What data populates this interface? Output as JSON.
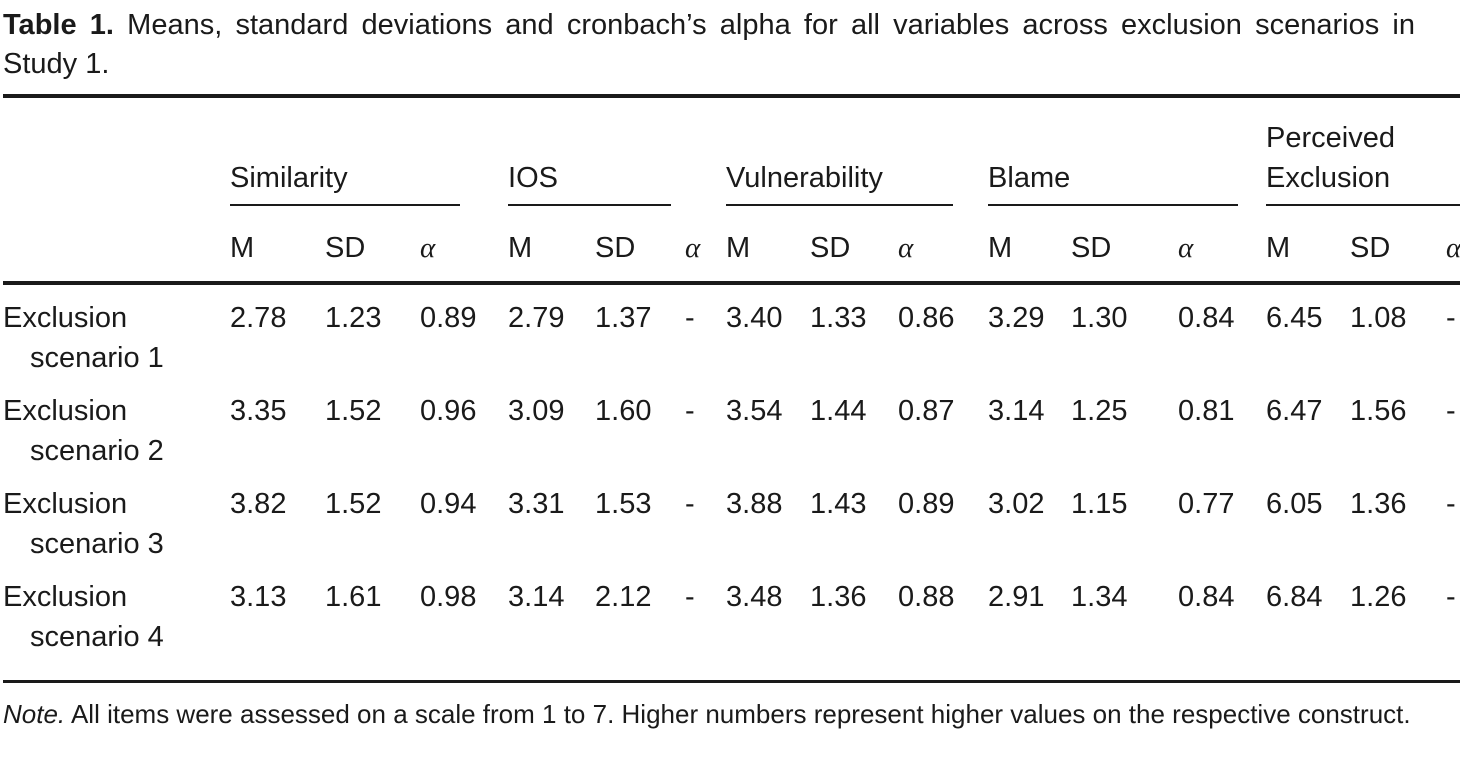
{
  "title": {
    "label": "Table 1.",
    "text": "Means, standard deviations and cronbach’s alpha for all variables across exclusion scenarios in Study 1."
  },
  "table": {
    "groups": [
      {
        "key": "similarity",
        "label": "Similarity"
      },
      {
        "key": "ios",
        "label": "IOS"
      },
      {
        "key": "vulnerability",
        "label": "Vulnerability"
      },
      {
        "key": "blame",
        "label": "Blame"
      },
      {
        "key": "perceived-exclusion",
        "label": "Perceived Exclusion"
      }
    ],
    "subheaders": {
      "m": "M",
      "sd": "SD",
      "alpha": "α"
    },
    "rows": [
      {
        "label_line1": "Exclusion",
        "label_line2": "scenario 1",
        "values": [
          "2.78",
          "1.23",
          "0.89",
          "2.79",
          "1.37",
          "-",
          "3.40",
          "1.33",
          "0.86",
          "3.29",
          "1.30",
          "0.84",
          "6.45",
          "1.08",
          "-"
        ]
      },
      {
        "label_line1": "Exclusion",
        "label_line2": "scenario 2",
        "values": [
          "3.35",
          "1.52",
          "0.96",
          "3.09",
          "1.60",
          "-",
          "3.54",
          "1.44",
          "0.87",
          "3.14",
          "1.25",
          "0.81",
          "6.47",
          "1.56",
          "-"
        ]
      },
      {
        "label_line1": "Exclusion",
        "label_line2": "scenario 3",
        "values": [
          "3.82",
          "1.52",
          "0.94",
          "3.31",
          "1.53",
          "-",
          "3.88",
          "1.43",
          "0.89",
          "3.02",
          "1.15",
          "0.77",
          "6.05",
          "1.36",
          "-"
        ]
      },
      {
        "label_line1": "Exclusion",
        "label_line2": "scenario 4",
        "values": [
          "3.13",
          "1.61",
          "0.98",
          "3.14",
          "2.12",
          "-",
          "3.48",
          "1.36",
          "0.88",
          "2.91",
          "1.34",
          "0.84",
          "6.84",
          "1.26",
          "-"
        ]
      }
    ]
  },
  "note": {
    "prefix": "Note.",
    "text": "All items were assessed on a scale from 1 to 7. Higher numbers represent higher values on the respective construct."
  }
}
